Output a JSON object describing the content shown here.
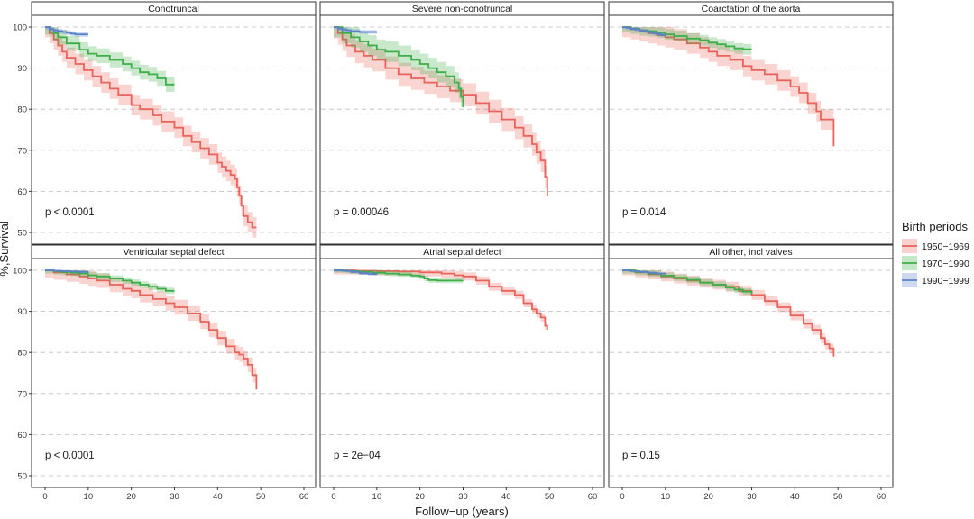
{
  "figure": {
    "xlabel": "Follow−up (years)",
    "ylabel": "%,Survival",
    "legend": {
      "title": "Birth periods",
      "placement": "right",
      "items": [
        {
          "label": "1950−1969",
          "color": "#E8635A"
        },
        {
          "label": "1970−1990",
          "color": "#3DAE48"
        },
        {
          "label": "1990−1999",
          "color": "#5B82C9"
        }
      ]
    }
  },
  "chart_data": {
    "type": "line",
    "layout": "facets 2x3",
    "xlim": [
      0,
      60
    ],
    "x_ticks": [
      0,
      10,
      20,
      30,
      40,
      50,
      60
    ],
    "ylim": [
      50,
      100
    ],
    "y_ticks": [
      50,
      60,
      70,
      80,
      90,
      100
    ],
    "grid": true,
    "panels": [
      {
        "title": "Conotruncal",
        "pvalue": "p < 0.0001",
        "series": [
          {
            "name": "1950−1969",
            "x": [
              0,
              1,
              2,
              3,
              4,
              5,
              7,
              9,
              11,
              13,
              15,
              17,
              20,
              22,
              25,
              27,
              30,
              32,
              34,
              36,
              38,
              40,
              41,
              42,
              43,
              44,
              44.5,
              45,
              45.5,
              46,
              47,
              48,
              49
            ],
            "y": [
              100,
              98.5,
              97,
              95.5,
              94,
              92.5,
              91,
              89.5,
              88,
              86.5,
              85,
              83.5,
              81,
              80,
              78.5,
              77,
              75.5,
              73.5,
              72,
              70.5,
              69,
              67,
              66,
              65,
              64,
              63,
              61,
              59,
              56.5,
              54,
              52.5,
              51.2,
              51.2
            ],
            "band": 2.5
          },
          {
            "name": "1970−1990",
            "x": [
              0,
              1,
              2,
              3,
              5,
              8,
              10,
              12,
              15,
              18,
              20,
              22,
              24,
              26,
              28,
              29,
              30
            ],
            "y": [
              100,
              99.5,
              98.5,
              97.5,
              96,
              94.5,
              93.5,
              93,
              92,
              91,
              90,
              89,
              88.5,
              87.5,
              86,
              86,
              86
            ],
            "band": 1.8
          },
          {
            "name": "1990−1999",
            "x": [
              0,
              1,
              2,
              3,
              4,
              5,
              6,
              7,
              8,
              9,
              10
            ],
            "y": [
              100,
              99.5,
              99.2,
              99,
              98.8,
              98.6,
              98.4,
              98.2,
              98.2,
              98.2,
              98.2
            ],
            "band": 0.6
          }
        ]
      },
      {
        "title": "Severe non-conotruncal",
        "pvalue": "p = 0.00046",
        "series": [
          {
            "name": "1950−1969",
            "x": [
              0,
              1,
              2,
              3,
              5,
              7,
              9,
              12,
              15,
              18,
              21,
              24,
              27,
              30,
              33,
              36,
              39,
              42,
              44,
              46,
              47,
              48,
              49,
              49.5
            ],
            "y": [
              100,
              98.5,
              97,
              95.5,
              94,
              93,
              92,
              90,
              88.5,
              87.5,
              86.5,
              85.5,
              84.5,
              83.5,
              81.5,
              79.5,
              77.5,
              75.5,
              73.5,
              71.5,
              69.5,
              67.5,
              63.5,
              59
            ],
            "band": 2.8
          },
          {
            "name": "1970−1990",
            "x": [
              0,
              2,
              4,
              6,
              8,
              10,
              12,
              15,
              18,
              20,
              22,
              24,
              26,
              28,
              29,
              29.5,
              30
            ],
            "y": [
              100,
              98.5,
              97.5,
              96.5,
              95.5,
              94.5,
              94,
              93,
              92,
              91,
              90,
              89,
              88,
              86.5,
              85,
              83,
              80.5
            ],
            "band": 2.5
          },
          {
            "name": "1990−1999",
            "x": [
              0,
              1,
              2,
              3,
              4,
              5,
              6,
              7,
              8,
              9,
              10
            ],
            "y": [
              100,
              99.6,
              99.4,
              99.2,
              99,
              99,
              98.8,
              98.8,
              98.8,
              98.8,
              98.8
            ],
            "band": 0.5
          }
        ]
      },
      {
        "title": "Coarctation of the aorta",
        "pvalue": "p = 0.014",
        "series": [
          {
            "name": "1950−1969",
            "x": [
              0,
              2,
              4,
              6,
              8,
              10,
              12,
              15,
              18,
              20,
              22,
              25,
              28,
              30,
              33,
              36,
              39,
              41,
              43,
              45,
              46,
              47,
              48,
              49
            ],
            "y": [
              100,
              99.5,
              99,
              98.5,
              98,
              97.5,
              97,
              96,
              95,
              94,
              93,
              92,
              90.5,
              89.5,
              88.5,
              87,
              85.5,
              84,
              81.5,
              79.5,
              77.5,
              77.5,
              77.5,
              71
            ],
            "band": 2.5
          },
          {
            "name": "1970−1990",
            "x": [
              0,
              2,
              4,
              6,
              8,
              10,
              12,
              15,
              18,
              20,
              22,
              24,
              26,
              28,
              29,
              30
            ],
            "y": [
              100,
              99.6,
              99.2,
              99,
              98.6,
              98.2,
              97.8,
              97.2,
              96.8,
              96.2,
              95.8,
              95.3,
              94.8,
              94.6,
              94.6,
              94.6
            ],
            "band": 1.3
          },
          {
            "name": "1990−1999",
            "x": [
              0,
              1,
              2,
              3,
              4,
              5,
              6,
              7,
              8,
              9,
              10
            ],
            "y": [
              100,
              99.8,
              99.6,
              99.4,
              99.2,
              99,
              98.8,
              98.5,
              98.3,
              98.1,
              97.9
            ],
            "band": 0.5
          }
        ]
      },
      {
        "title": "Ventricular septal defect",
        "pvalue": "p < 0.0001",
        "series": [
          {
            "name": "1950−1969",
            "x": [
              0,
              2,
              5,
              8,
              10,
              12,
              15,
              18,
              20,
              22,
              25,
              28,
              30,
              33,
              36,
              38,
              40,
              42,
              44,
              45,
              46,
              47,
              48,
              49
            ],
            "y": [
              100,
              99.5,
              99,
              98.5,
              98,
              97.5,
              96.5,
              95.5,
              95,
              94,
              93,
              92,
              91,
              89.5,
              87.5,
              85.5,
              83.5,
              81.5,
              80,
              79.5,
              78.5,
              77,
              74.5,
              71
            ],
            "band": 1.8
          },
          {
            "name": "1970−1990",
            "x": [
              0,
              2,
              4,
              6,
              8,
              10,
              12,
              15,
              18,
              20,
              22,
              24,
              26,
              28,
              30
            ],
            "y": [
              100,
              99.8,
              99.6,
              99.4,
              99.2,
              98.8,
              98.5,
              98,
              97.5,
              97,
              96.5,
              96,
              95.5,
              95,
              95
            ],
            "band": 0.8
          },
          {
            "name": "1990−1999",
            "x": [
              0,
              2,
              4,
              6,
              8,
              10
            ],
            "y": [
              100,
              99.9,
              99.8,
              99.7,
              99.6,
              99.5
            ],
            "band": 0.3
          }
        ]
      },
      {
        "title": "Atrial septal defect",
        "pvalue": "p = 2e−04",
        "series": [
          {
            "name": "1950−1969",
            "x": [
              0,
              5,
              10,
              15,
              20,
              25,
              28,
              30,
              33,
              36,
              39,
              42,
              44,
              46,
              47,
              48,
              49,
              49.5
            ],
            "y": [
              100,
              99.9,
              99.8,
              99.7,
              99.5,
              99.2,
              98.8,
              98.5,
              97.5,
              96,
              95,
              94,
              92,
              90.5,
              89.5,
              88.5,
              86.5,
              85.5
            ],
            "band": 1.0
          },
          {
            "name": "1970−1990",
            "x": [
              0,
              3,
              6,
              9,
              12,
              15,
              18,
              20,
              21,
              22,
              24,
              26,
              28,
              30
            ],
            "y": [
              100,
              99.8,
              99.6,
              99.4,
              99.2,
              99,
              98.7,
              98.5,
              98,
              97.6,
              97.5,
              97.5,
              97.5,
              97.5
            ],
            "band": 0.6
          },
          {
            "name": "1990−1999",
            "x": [
              0,
              2,
              4,
              6,
              8,
              10
            ],
            "y": [
              100,
              99.9,
              99.6,
              99.3,
              99.1,
              99
            ],
            "band": 0.4
          }
        ]
      },
      {
        "title": "All other, incl valves",
        "pvalue": "p = 0.15",
        "series": [
          {
            "name": "1950−1969",
            "x": [
              0,
              3,
              6,
              9,
              12,
              15,
              18,
              21,
              24,
              27,
              30,
              33,
              36,
              39,
              42,
              44,
              46,
              47,
              48,
              49
            ],
            "y": [
              100,
              99.5,
              99,
              98.5,
              98,
              97.5,
              97,
              96.5,
              96,
              95,
              94,
              92.5,
              91,
              89,
              87,
              85.5,
              83.5,
              82,
              81,
              79
            ],
            "band": 1.2
          },
          {
            "name": "1970−1990",
            "x": [
              0,
              3,
              6,
              9,
              12,
              15,
              18,
              21,
              24,
              26,
              28,
              30
            ],
            "y": [
              100,
              99.6,
              99.2,
              98.7,
              98.2,
              97.7,
              97,
              96.5,
              95.8,
              95.3,
              94.8,
              94.3
            ],
            "band": 0.8
          },
          {
            "name": "1990−1999",
            "x": [
              0,
              2,
              4,
              6,
              8,
              10
            ],
            "y": [
              100,
              99.8,
              99.6,
              99.4,
              99.2,
              99
            ],
            "band": 0.3
          }
        ]
      }
    ]
  }
}
